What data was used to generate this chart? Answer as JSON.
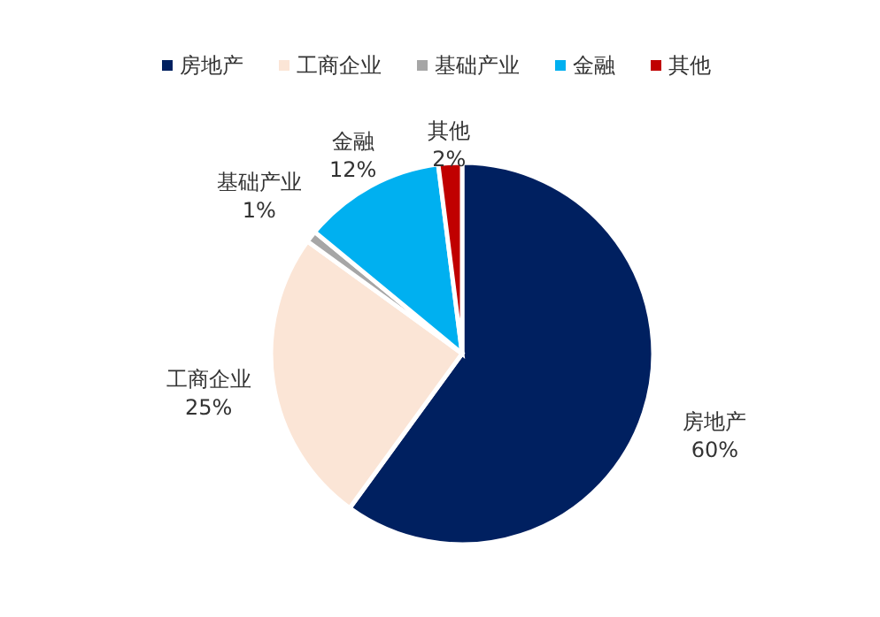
{
  "chart_data": {
    "type": "pie",
    "categories": [
      "房地产",
      "工商企业",
      "基础产业",
      "金融",
      "其他"
    ],
    "values": [
      60,
      25,
      1,
      12,
      2
    ],
    "value_labels": [
      "60%",
      "25%",
      "1%",
      "12%",
      "2%"
    ],
    "colors": [
      "#002060",
      "#fbe5d6",
      "#a6a6a6",
      "#00b0f0",
      "#c00000"
    ],
    "legend": "top"
  }
}
